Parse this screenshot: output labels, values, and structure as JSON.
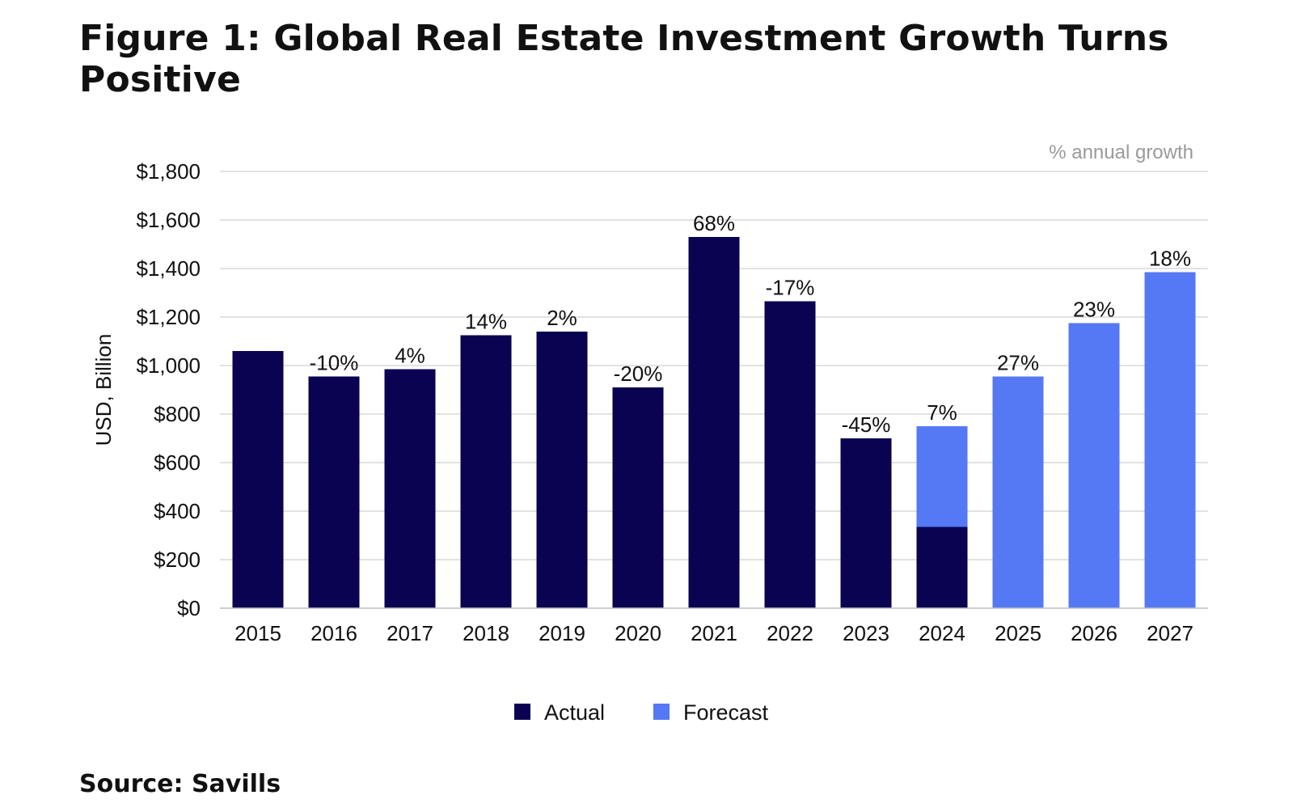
{
  "header": {
    "title": "Figure 1: Global Real Estate Investment Growth Turns Positive"
  },
  "footer": {
    "source": "Source: Savills"
  },
  "chart_data": {
    "type": "bar",
    "stacked": true,
    "title": "Figure 1: Global Real Estate Investment Growth Turns Positive",
    "xlabel": "",
    "ylabel": "USD, Billion",
    "ylim": [
      0,
      1800
    ],
    "yticks": [
      0,
      200,
      400,
      600,
      800,
      1000,
      1200,
      1400,
      1600,
      1800
    ],
    "ytick_labels": [
      "$0",
      "$200",
      "$400",
      "$600",
      "$800",
      "$1,000",
      "$1,200",
      "$1,400",
      "$1,600",
      "$1,800"
    ],
    "grid": true,
    "legend_position": "bottom-center",
    "annotation_header": "% annual growth",
    "categories": [
      "2015",
      "2016",
      "2017",
      "2018",
      "2019",
      "2020",
      "2021",
      "2022",
      "2023",
      "2024",
      "2025",
      "2026",
      "2027"
    ],
    "series": [
      {
        "name": "Actual",
        "color": "#0a0352",
        "values": [
          1060,
          955,
          985,
          1125,
          1140,
          910,
          1530,
          1265,
          700,
          335,
          0,
          0,
          0
        ]
      },
      {
        "name": "Forecast",
        "color": "#5578f5",
        "values": [
          0,
          0,
          0,
          0,
          0,
          0,
          0,
          0,
          0,
          415,
          955,
          1175,
          1385
        ]
      }
    ],
    "growth_labels": [
      "",
      "-10%",
      "4%",
      "14%",
      "2%",
      "-20%",
      "68%",
      "-17%",
      "-45%",
      "7%",
      "27%",
      "23%",
      "18%"
    ]
  }
}
